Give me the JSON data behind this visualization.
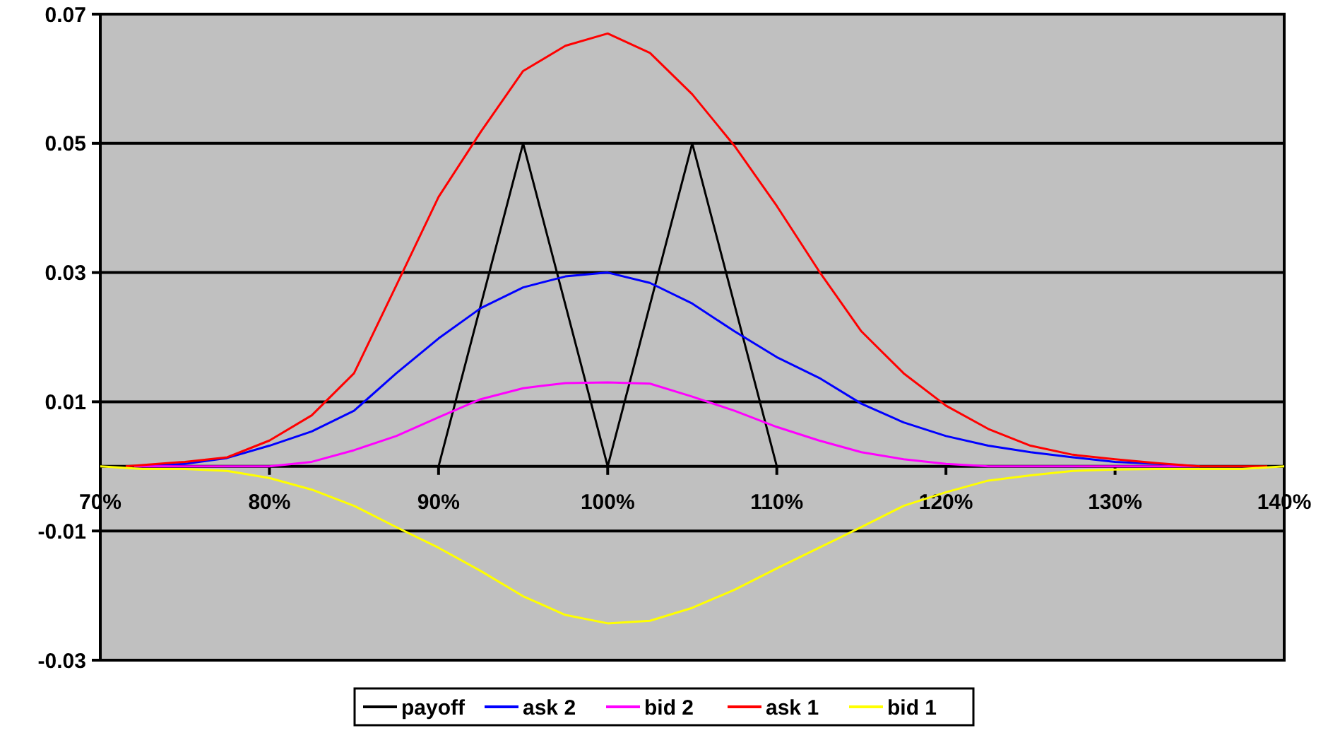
{
  "chart_data": {
    "type": "line",
    "xlim": [
      0.7,
      1.4
    ],
    "ylim": [
      -0.03,
      0.07
    ],
    "xticks": [
      {
        "value": 0.7,
        "label": "70%"
      },
      {
        "value": 0.8,
        "label": "80%"
      },
      {
        "value": 0.9,
        "label": "90%"
      },
      {
        "value": 1.0,
        "label": "100%"
      },
      {
        "value": 1.1,
        "label": "110%"
      },
      {
        "value": 1.2,
        "label": "120%"
      },
      {
        "value": 1.3,
        "label": "130%"
      },
      {
        "value": 1.4,
        "label": "140%"
      }
    ],
    "yticks": [
      -0.03,
      -0.01,
      0.01,
      0.03,
      0.05,
      0.07
    ],
    "grid": "y",
    "legend": "bottom",
    "marker": "none",
    "line_style": "solid",
    "series": [
      {
        "name": "payoff",
        "color": "#000000",
        "x": [
          0.9,
          0.95,
          1.0,
          1.05,
          1.1
        ],
        "values": [
          0,
          0.05,
          0,
          0.05,
          0
        ]
      },
      {
        "name": "ask 2",
        "color": "#0000ff",
        "x": [
          0.72,
          0.75,
          0.775,
          0.8,
          0.825,
          0.85,
          0.875,
          0.9,
          0.925,
          0.95,
          0.975,
          1.0,
          1.025,
          1.05,
          1.075,
          1.1,
          1.125,
          1.15,
          1.175,
          1.2,
          1.225,
          1.25,
          1.275,
          1.3,
          1.325,
          1.35
        ],
        "values": [
          0,
          0.0004,
          0.0013,
          0.0032,
          0.0054,
          0.0086,
          0.0144,
          0.0198,
          0.0245,
          0.0277,
          0.0294,
          0.03,
          0.0284,
          0.0252,
          0.0209,
          0.0169,
          0.0137,
          0.0097,
          0.0068,
          0.0047,
          0.0032,
          0.0022,
          0.0014,
          0.0007,
          0.0004,
          0
        ]
      },
      {
        "name": "bid 2",
        "color": "#ff00ff",
        "x": [
          0.72,
          0.8,
          0.825,
          0.85,
          0.875,
          0.9,
          0.925,
          0.95,
          0.975,
          1.0,
          1.025,
          1.05,
          1.075,
          1.1,
          1.125,
          1.15,
          1.175,
          1.2,
          1.225,
          1.35
        ],
        "values": [
          0,
          0,
          0.0007,
          0.0025,
          0.0047,
          0.0076,
          0.0104,
          0.0121,
          0.0129,
          0.013,
          0.0128,
          0.0108,
          0.0086,
          0.0061,
          0.004,
          0.0022,
          0.0011,
          0.0004,
          0,
          0
        ]
      },
      {
        "name": "ask 1",
        "color": "#ff0000",
        "x": [
          0.715,
          0.75,
          0.775,
          0.8,
          0.825,
          0.85,
          0.875,
          0.9,
          0.925,
          0.95,
          0.975,
          1.0,
          1.025,
          1.05,
          1.075,
          1.1,
          1.125,
          1.15,
          1.175,
          1.2,
          1.225,
          1.25,
          1.275,
          1.3,
          1.325,
          1.35,
          1.39
        ],
        "values": [
          0,
          0.0007,
          0.0014,
          0.004,
          0.0079,
          0.0144,
          0.028,
          0.0417,
          0.0518,
          0.0612,
          0.0651,
          0.067,
          0.064,
          0.0576,
          0.0496,
          0.0403,
          0.0302,
          0.0209,
          0.0144,
          0.0094,
          0.0058,
          0.0032,
          0.0018,
          0.0011,
          0.0005,
          0,
          0
        ]
      },
      {
        "name": "bid 1",
        "color": "#ffff00",
        "x": [
          0.7,
          0.725,
          0.75,
          0.775,
          0.8,
          0.825,
          0.85,
          0.875,
          0.9,
          0.925,
          0.95,
          0.975,
          1.0,
          1.025,
          1.05,
          1.075,
          1.1,
          1.125,
          1.15,
          1.175,
          1.2,
          1.225,
          1.25,
          1.275,
          1.3,
          1.325,
          1.35,
          1.375,
          1.4
        ],
        "values": [
          0,
          -0.0004,
          -0.0004,
          -0.0007,
          -0.0018,
          -0.0036,
          -0.0061,
          -0.0094,
          -0.0126,
          -0.0162,
          -0.0201,
          -0.023,
          -0.0243,
          -0.0239,
          -0.0219,
          -0.0191,
          -0.0158,
          -0.0126,
          -0.0094,
          -0.0061,
          -0.004,
          -0.0022,
          -0.0014,
          -0.0007,
          -0.0005,
          -0.0004,
          -0.0004,
          -0.0004,
          0
        ]
      }
    ]
  }
}
